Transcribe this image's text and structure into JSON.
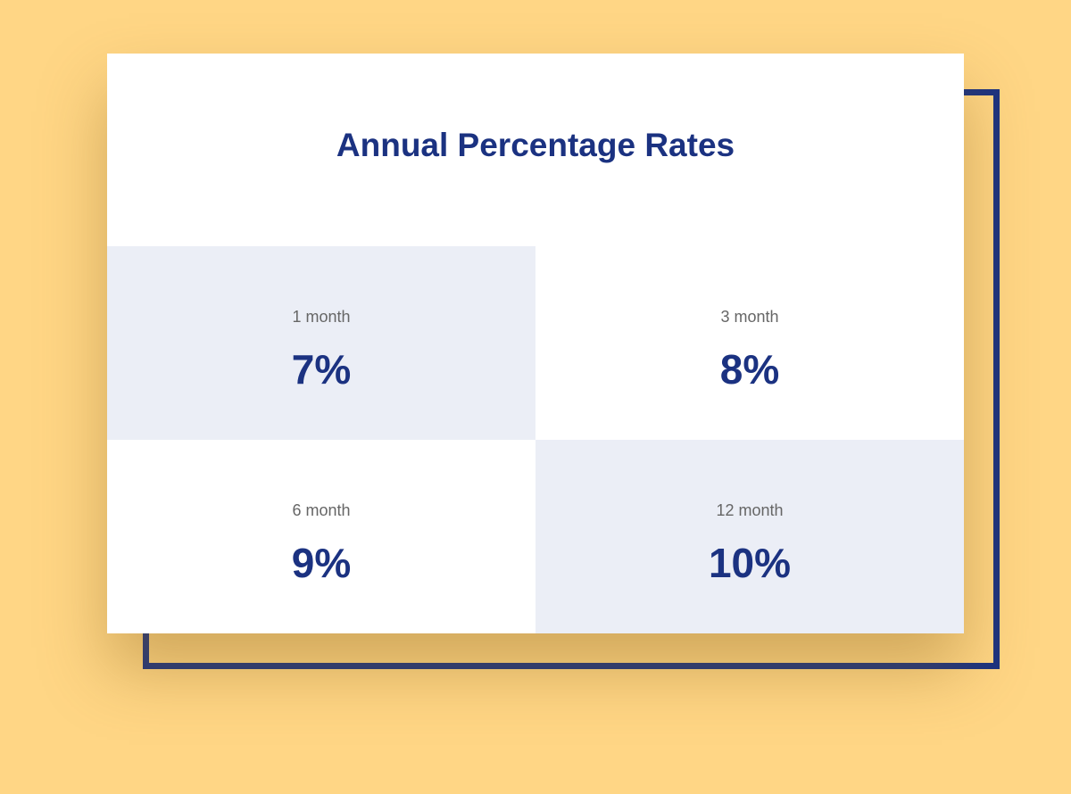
{
  "title": "Annual Percentage Rates",
  "colors": {
    "background": "#FFD685",
    "accent": "#1B3281",
    "card": "#FFFFFF",
    "shaded_cell": "#EBEEF6",
    "term_text": "#666666"
  },
  "rates": [
    {
      "term": "1 month",
      "rate": "7%"
    },
    {
      "term": "3 month",
      "rate": "8%"
    },
    {
      "term": "6 month",
      "rate": "9%"
    },
    {
      "term": "12 month",
      "rate": "10%"
    }
  ]
}
